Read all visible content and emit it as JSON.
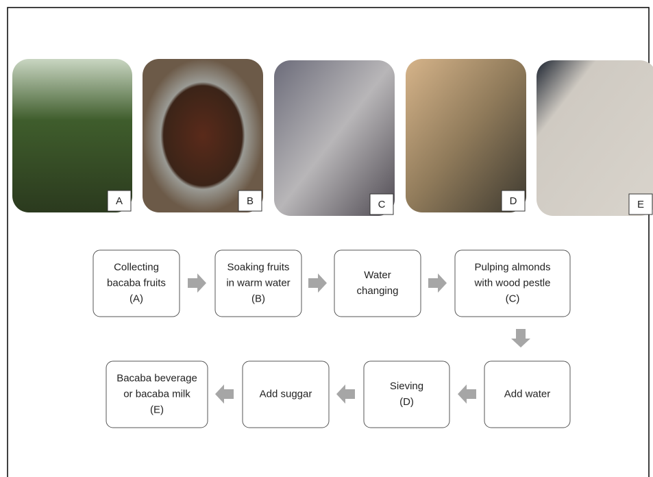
{
  "photos": [
    {
      "label": "A"
    },
    {
      "label": "B"
    },
    {
      "label": "C"
    },
    {
      "label": "D"
    },
    {
      "label": "E"
    }
  ],
  "nodes": [
    {
      "lines": [
        "Collecting",
        "bacaba fruits",
        "(A)"
      ]
    },
    {
      "lines": [
        "Soaking fruits",
        "in warm water",
        "(B)"
      ]
    },
    {
      "lines": [
        "Water",
        "changing"
      ]
    },
    {
      "lines": [
        "Pulping almonds",
        "with wood pestle",
        "(C)"
      ]
    },
    {
      "lines": [
        "Add water"
      ]
    },
    {
      "lines": [
        "Sieving",
        "(D)"
      ]
    },
    {
      "lines": [
        "Add suggar"
      ]
    },
    {
      "lines": [
        "Bacaba beverage",
        "or bacaba milk",
        "(E)"
      ]
    }
  ]
}
